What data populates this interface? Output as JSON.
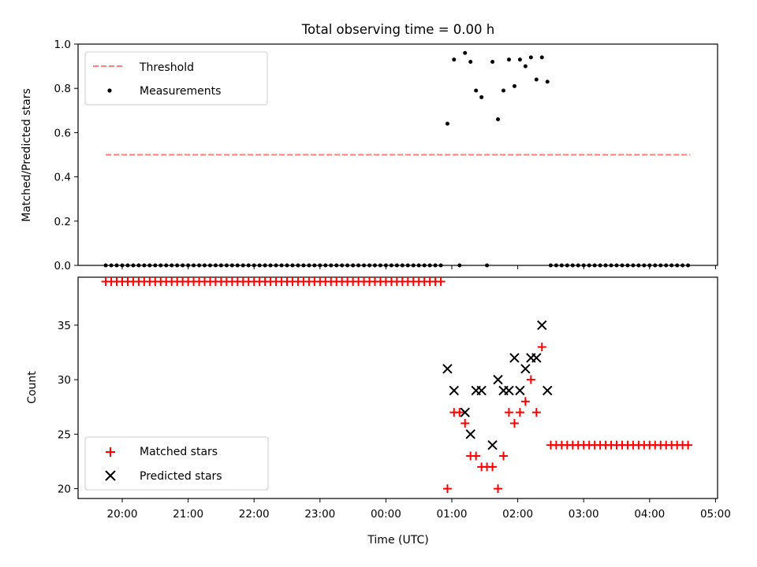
{
  "chart_data": [
    {
      "type": "scatter",
      "title": "Total observing time = 0.00 h",
      "ylabel": "Matched/Predicted stars",
      "ylim": [
        0,
        1.0
      ],
      "yticks": [
        "0.0",
        "0.2",
        "0.4",
        "0.6",
        "0.8",
        "1.0"
      ],
      "legend": {
        "placement": "upper-left",
        "entries": [
          "Threshold",
          "Measurements"
        ]
      },
      "threshold": {
        "name": "Threshold",
        "value": 0.5,
        "x_start": "19:45",
        "x_end": "04:37",
        "color": "#ff7f7f",
        "style": "dashed"
      },
      "measurements": {
        "name": "Measurements",
        "color": "#000000",
        "zero_runs": [
          {
            "start": "19:45",
            "end": "00:51",
            "step_min": 5
          },
          {
            "start": "02:30",
            "end": "04:00",
            "step_min": 5
          },
          {
            "start": "04:05",
            "end": "04:37",
            "step_min": 5
          }
        ],
        "points": [
          {
            "x": "00:56",
            "y": 0.64
          },
          {
            "x": "01:02",
            "y": 0.93
          },
          {
            "x": "01:07",
            "y": 0.0
          },
          {
            "x": "01:12",
            "y": 0.96
          },
          {
            "x": "01:17",
            "y": 0.92
          },
          {
            "x": "01:22",
            "y": 0.79
          },
          {
            "x": "01:27",
            "y": 0.76
          },
          {
            "x": "01:32",
            "y": 0.0
          },
          {
            "x": "01:37",
            "y": 0.92
          },
          {
            "x": "01:42",
            "y": 0.66
          },
          {
            "x": "01:47",
            "y": 0.79
          },
          {
            "x": "01:52",
            "y": 0.93
          },
          {
            "x": "01:57",
            "y": 0.81
          },
          {
            "x": "02:02",
            "y": 0.93
          },
          {
            "x": "02:07",
            "y": 0.9
          },
          {
            "x": "02:12",
            "y": 0.94
          },
          {
            "x": "02:17",
            "y": 0.84
          },
          {
            "x": "02:22",
            "y": 0.94
          },
          {
            "x": "02:27",
            "y": 0.83
          }
        ]
      }
    },
    {
      "type": "scatter",
      "xlabel": "Time (UTC)",
      "ylabel": "Count",
      "ylim": [
        19.1,
        39.4
      ],
      "yticks": [
        "20",
        "25",
        "30",
        "35"
      ],
      "xticks": [
        "20:00",
        "21:00",
        "22:00",
        "23:00",
        "00:00",
        "01:00",
        "02:00",
        "03:00",
        "04:00",
        "05:00"
      ],
      "legend": {
        "placement": "lower-left",
        "entries": [
          "Matched stars",
          "Predicted stars"
        ]
      },
      "matched": {
        "name": "Matched stars",
        "color": "#ff0000",
        "marker": "plus",
        "runs": [
          {
            "start": "19:45",
            "end": "00:51",
            "step_min": 5,
            "y": 39
          },
          {
            "start": "02:30",
            "end": "04:37",
            "step_min": 5,
            "y": 24
          }
        ],
        "points": [
          {
            "x": "00:56",
            "y": 20
          },
          {
            "x": "01:02",
            "y": 27
          },
          {
            "x": "01:07",
            "y": 27
          },
          {
            "x": "01:12",
            "y": 26
          },
          {
            "x": "01:17",
            "y": 23
          },
          {
            "x": "01:22",
            "y": 23
          },
          {
            "x": "01:27",
            "y": 22
          },
          {
            "x": "01:32",
            "y": 22
          },
          {
            "x": "01:37",
            "y": 22
          },
          {
            "x": "01:42",
            "y": 20
          },
          {
            "x": "01:47",
            "y": 23
          },
          {
            "x": "01:52",
            "y": 27
          },
          {
            "x": "01:57",
            "y": 26
          },
          {
            "x": "02:02",
            "y": 27
          },
          {
            "x": "02:07",
            "y": 28
          },
          {
            "x": "02:12",
            "y": 30
          },
          {
            "x": "02:17",
            "y": 27
          },
          {
            "x": "02:22",
            "y": 33
          }
        ]
      },
      "predicted": {
        "name": "Predicted stars",
        "color": "#000000",
        "marker": "x",
        "points": [
          {
            "x": "00:56",
            "y": 31
          },
          {
            "x": "01:02",
            "y": 29
          },
          {
            "x": "01:12",
            "y": 27
          },
          {
            "x": "01:17",
            "y": 25
          },
          {
            "x": "01:22",
            "y": 29
          },
          {
            "x": "01:27",
            "y": 29
          },
          {
            "x": "01:37",
            "y": 24
          },
          {
            "x": "01:42",
            "y": 30
          },
          {
            "x": "01:47",
            "y": 29
          },
          {
            "x": "01:52",
            "y": 29
          },
          {
            "x": "01:57",
            "y": 32
          },
          {
            "x": "02:02",
            "y": 29
          },
          {
            "x": "02:07",
            "y": 31
          },
          {
            "x": "02:12",
            "y": 32
          },
          {
            "x": "02:17",
            "y": 32
          },
          {
            "x": "02:22",
            "y": 35
          },
          {
            "x": "02:27",
            "y": 29
          }
        ]
      }
    }
  ]
}
